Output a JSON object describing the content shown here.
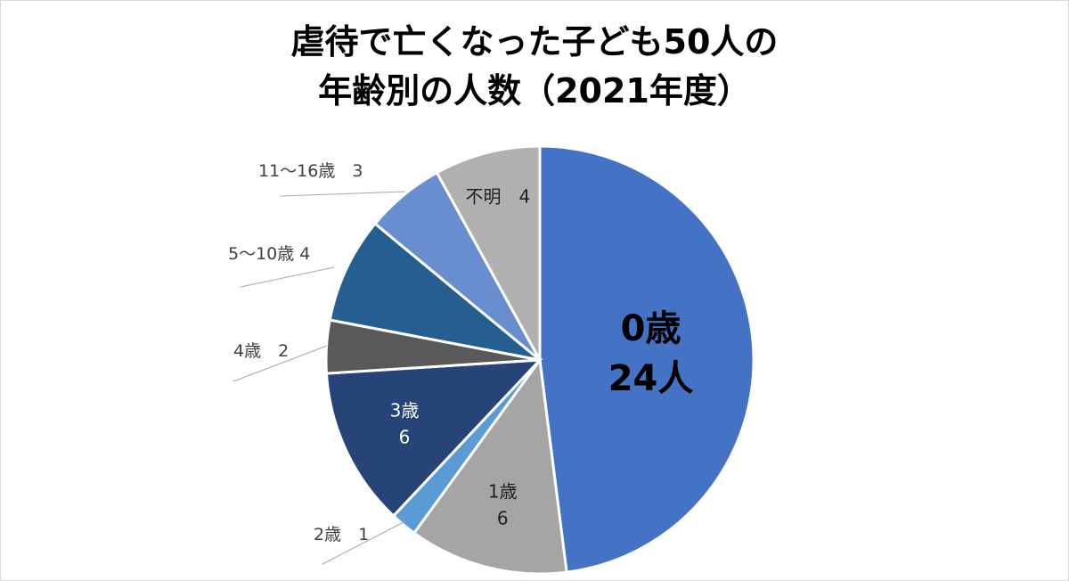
{
  "chart_data": {
    "type": "pie",
    "title_lines": [
      "虐待で亡くなった子ども50人の",
      "年齢別の人数（2021年度）"
    ],
    "slices": [
      {
        "name": "0歳",
        "value": 24,
        "label_lines": [
          "0歳",
          "24人"
        ],
        "color": "#4472c4",
        "label_color": "#000000",
        "label_position": "inside-large"
      },
      {
        "name": "1歳",
        "value": 6,
        "label_lines": [
          "1歳",
          "6"
        ],
        "color": "#a5a5a5",
        "label_color": "#1f1f1f",
        "label_position": "inside"
      },
      {
        "name": "2歳",
        "value": 1,
        "label_lines": [
          "2歳　1"
        ],
        "color": "#5b9bd5",
        "label_color": "#404040",
        "label_position": "outside-left"
      },
      {
        "name": "3歳",
        "value": 6,
        "label_lines": [
          "3歳",
          "6"
        ],
        "color": "#264478",
        "label_color": "#ffffff",
        "label_position": "inside"
      },
      {
        "name": "4歳",
        "value": 2,
        "label_lines": [
          "4歳　2"
        ],
        "color": "#595959",
        "label_color": "#404040",
        "label_position": "outside-left"
      },
      {
        "name": "5〜10歳",
        "value": 4,
        "label_lines": [
          "5〜10歳 4"
        ],
        "color": "#255e91",
        "label_color": "#404040",
        "label_position": "outside-left"
      },
      {
        "name": "11〜16歳",
        "value": 3,
        "label_lines": [
          "11〜16歳　3"
        ],
        "color": "#698ed0",
        "label_color": "#404040",
        "label_position": "outside-left"
      },
      {
        "name": "不明",
        "value": 4,
        "label_lines": [
          "不明　4"
        ],
        "color": "#b0b0b0",
        "label_color": "#1f1f1f",
        "label_position": "inside"
      }
    ]
  }
}
